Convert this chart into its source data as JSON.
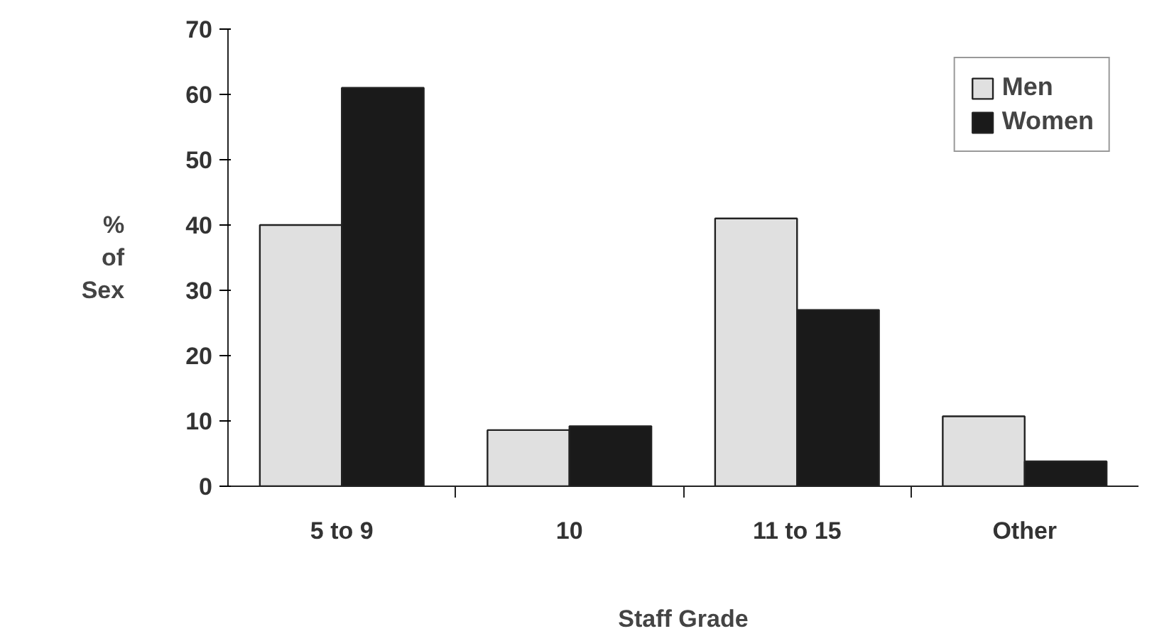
{
  "chart_data": {
    "type": "bar",
    "xlabel": "Staff Grade",
    "ylabel": "% of Sex",
    "categories": [
      "5 to 9",
      "10",
      "11 to 15",
      "Other"
    ],
    "series": [
      {
        "name": "Men",
        "color": "#e0e0e0",
        "values": [
          40,
          8.6,
          41,
          10.7
        ]
      },
      {
        "name": "Women",
        "color": "#1a1a1a",
        "values": [
          61,
          9.2,
          27,
          3.8
        ]
      }
    ],
    "ylim": [
      0,
      70
    ],
    "yticks": [
      0,
      10,
      20,
      30,
      40,
      50,
      60,
      70
    ],
    "grid": false,
    "legend": "top right"
  }
}
